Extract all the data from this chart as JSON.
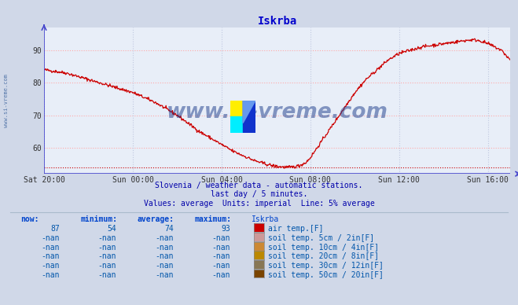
{
  "title": "Iskrba",
  "title_color": "#0000cc",
  "bg_color": "#d0d8e8",
  "plot_bg_color": "#e8eef8",
  "line_color": "#cc0000",
  "axis_color": "#4444cc",
  "xlim": [
    0,
    21
  ],
  "ylim": [
    52,
    97
  ],
  "yticks": [
    60,
    70,
    80,
    90
  ],
  "xtick_labels": [
    "Sat 20:00",
    "Sun 00:00",
    "Sun 04:00",
    "Sun 08:00",
    "Sun 12:00",
    "Sun 16:00"
  ],
  "xtick_positions": [
    0,
    4,
    8,
    12,
    16,
    20
  ],
  "footer_line1": "Slovenia / weather data - automatic stations.",
  "footer_line2": "last day / 5 minutes.",
  "footer_line3": "Values: average  Units: imperial  Line: 5% average",
  "footer_color": "#0000aa",
  "watermark": "www.si-vreme.com",
  "watermark_color": "#1a3a8a",
  "table_headers": [
    "now:",
    "minimum:",
    "average:",
    "maximum:",
    "Iskrba"
  ],
  "table_rows": [
    [
      "87",
      "54",
      "74",
      "93",
      "#cc0000",
      "air temp.[F]"
    ],
    [
      "-nan",
      "-nan",
      "-nan",
      "-nan",
      "#cc9999",
      "soil temp. 5cm / 2in[F]"
    ],
    [
      "-nan",
      "-nan",
      "-nan",
      "-nan",
      "#cc8833",
      "soil temp. 10cm / 4in[F]"
    ],
    [
      "-nan",
      "-nan",
      "-nan",
      "-nan",
      "#bb8800",
      "soil temp. 20cm / 8in[F]"
    ],
    [
      "-nan",
      "-nan",
      "-nan",
      "-nan",
      "#887755",
      "soil temp. 30cm / 12in[F]"
    ],
    [
      "-nan",
      "-nan",
      "-nan",
      "-nan",
      "#7a4400",
      "soil temp. 50cm / 20in[F]"
    ]
  ],
  "text_color": "#0055aa",
  "sidebar_text": "www.si-vreme.com",
  "sidebar_color": "#5577aa",
  "key_t": [
    0,
    0.5,
    1,
    1.5,
    2,
    2.5,
    3,
    3.5,
    4,
    4.5,
    5,
    5.5,
    6,
    6.5,
    7,
    7.5,
    8,
    8.5,
    9,
    9.5,
    10,
    10.3,
    10.6,
    10.8,
    11,
    11.2,
    11.5,
    11.8,
    12,
    12.3,
    12.6,
    13,
    13.5,
    14,
    14.5,
    15,
    15.5,
    16,
    16.5,
    17,
    17.5,
    18,
    18.5,
    19,
    19.3,
    19.6,
    19.8,
    20,
    20.3,
    20.6,
    21
  ],
  "key_v": [
    84,
    83.5,
    83,
    82,
    81,
    80,
    79,
    78,
    77,
    75.5,
    74,
    72,
    70,
    67.5,
    65,
    63,
    61,
    59,
    57.5,
    56,
    55,
    54.5,
    54.2,
    54.1,
    54,
    54.1,
    54.5,
    55.5,
    57,
    60,
    63,
    67,
    72,
    77,
    81,
    84,
    87,
    89,
    90,
    91,
    91.5,
    92,
    92.5,
    93,
    93.2,
    93,
    92.5,
    92,
    91,
    90,
    87
  ]
}
